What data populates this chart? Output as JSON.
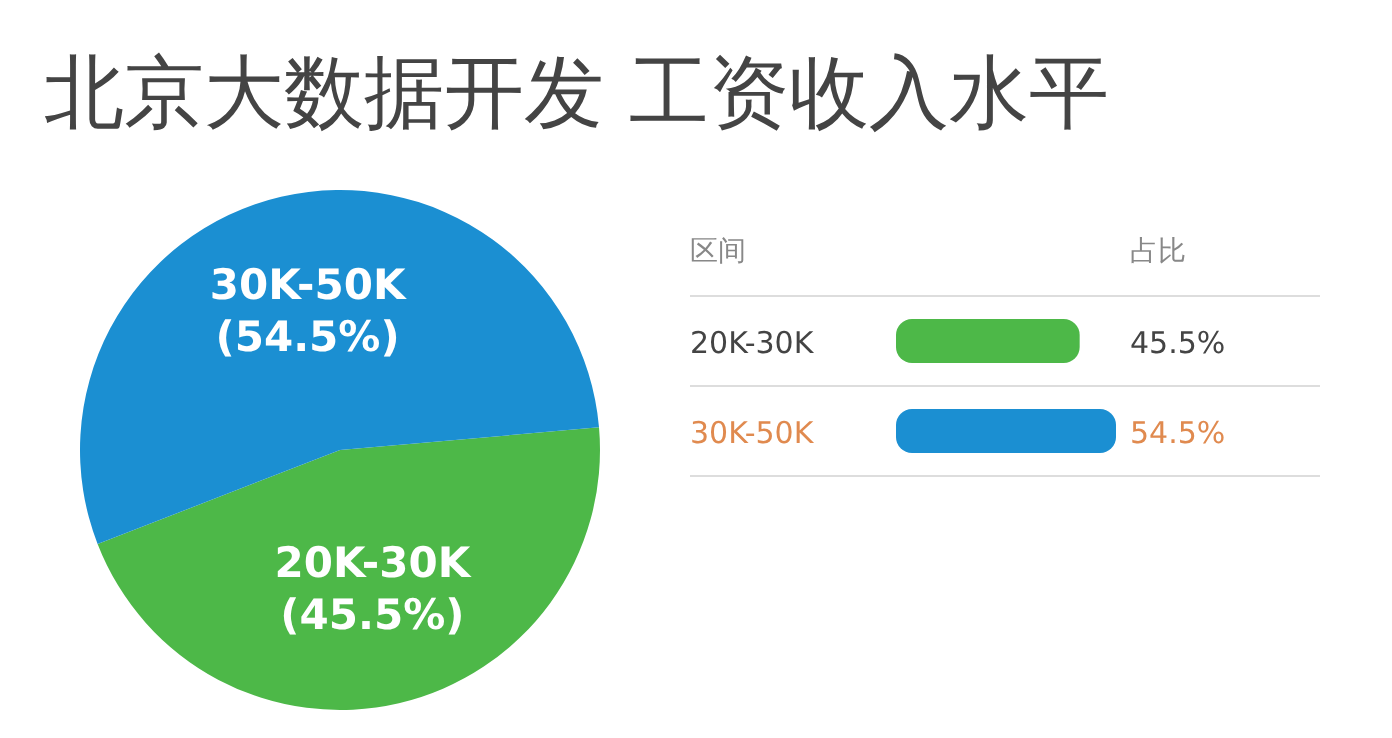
{
  "chart_data": [
    {
      "type": "pie",
      "title": "北京大数据开发 工资收入水平",
      "categories": [
        "20K-30K",
        "30K-50K"
      ],
      "values": [
        45.5,
        54.5
      ],
      "value_labels": [
        "(45.5%)",
        "(54.5%)"
      ],
      "colors": [
        "#4db848",
        "#1b8fd2"
      ]
    },
    {
      "type": "bar",
      "orientation": "horizontal",
      "categories": [
        "20K-30K",
        "30K-50K"
      ],
      "values": [
        45.5,
        54.5
      ],
      "value_labels": [
        "45.5%",
        "54.5%"
      ],
      "colors": [
        "#4db848",
        "#1b8fd2"
      ],
      "annotations": [
        "区间",
        "占比"
      ]
    }
  ]
}
